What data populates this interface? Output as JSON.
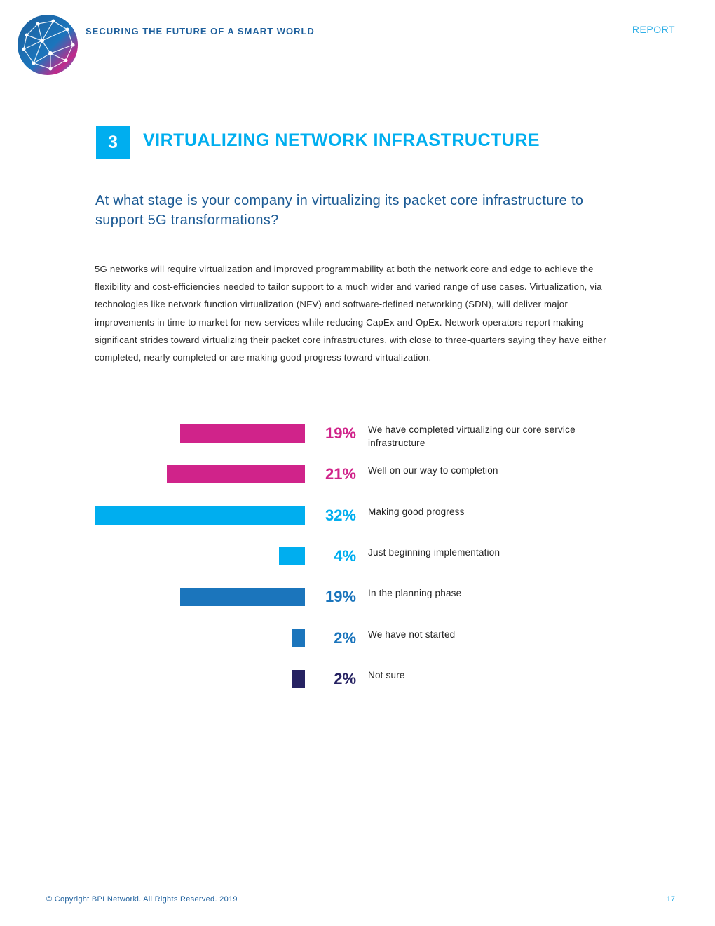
{
  "header": {
    "title": "SECURING THE FUTURE OF A SMART WORLD",
    "tag": "REPORT"
  },
  "section": {
    "number": "3",
    "title": "VIRTUALIZING NETWORK INFRASTRUCTURE"
  },
  "question": "At what stage is your company in virtualizing its packet core infrastructure to support 5G transformations?",
  "body": "5G networks will require virtualization and improved programmability at both the network core and edge to achieve the flexibility and cost-efficiencies needed to tailor support to a much wider and varied range of use cases. Virtualization, via technologies like network function virtualization (NFV) and software-defined networking (SDN), will deliver major improvements in time to market for new services while reducing CapEx and OpEx. Network operators report making significant strides toward virtualizing their packet core infrastructures, with close to three-quarters saying they have either completed, nearly completed or are making good progress toward virtualization.",
  "chart_data": {
    "type": "bar",
    "orientation": "horizontal",
    "title": "",
    "xlabel": "",
    "ylabel": "",
    "xlim": [
      0,
      32
    ],
    "categories": [
      "We have completed virtualizing our core service infrastructure",
      "Well on our way to completion",
      "Making good progress",
      "Just beginning implementation",
      "In the planning phase",
      "We have not started",
      "Not sure"
    ],
    "values": [
      19,
      21,
      32,
      4,
      19,
      2,
      2
    ],
    "value_labels": [
      "19%",
      "21%",
      "32%",
      "4%",
      "19%",
      "2%",
      "2%"
    ],
    "colors": [
      "#d0238a",
      "#d0238a",
      "#00aeef",
      "#00aeef",
      "#1b75bc",
      "#1b75bc",
      "#262262"
    ]
  },
  "footer": {
    "copyright": "© Copyright BPI Networkl. All Rights Reserved. 2019",
    "page": "17"
  }
}
